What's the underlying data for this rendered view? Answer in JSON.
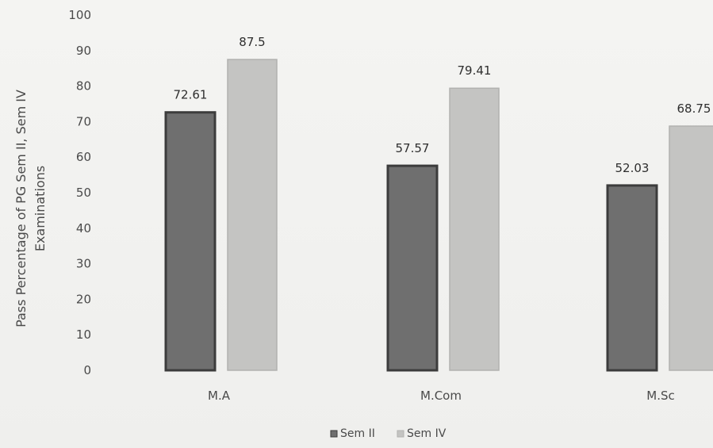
{
  "chart_data": {
    "type": "bar",
    "categories": [
      "M.A",
      "M.Com",
      "M.Sc"
    ],
    "series": [
      {
        "name": "Sem II",
        "values": [
          72.61,
          57.57,
          52.03
        ],
        "color": "#6f6f6f",
        "edge": "#3c3c3c"
      },
      {
        "name": "Sem IV",
        "values": [
          87.5,
          79.41,
          68.75
        ],
        "color": "#c4c4c2",
        "edge": "#b2b2b0"
      }
    ],
    "data_labels": [
      [
        "72.61",
        "57.57",
        "52.03"
      ],
      [
        "87.5",
        "79.41",
        "68.75"
      ]
    ],
    "ylabel_lines": [
      "Pass Percentage of PG Sem II, Sem IV",
      "Examinations"
    ],
    "xlabel": "",
    "ylim": [
      0,
      100
    ],
    "yticks": [
      0,
      10,
      20,
      30,
      40,
      50,
      60,
      70,
      80,
      90,
      100
    ],
    "grid": false,
    "legend_position": "bottom"
  }
}
